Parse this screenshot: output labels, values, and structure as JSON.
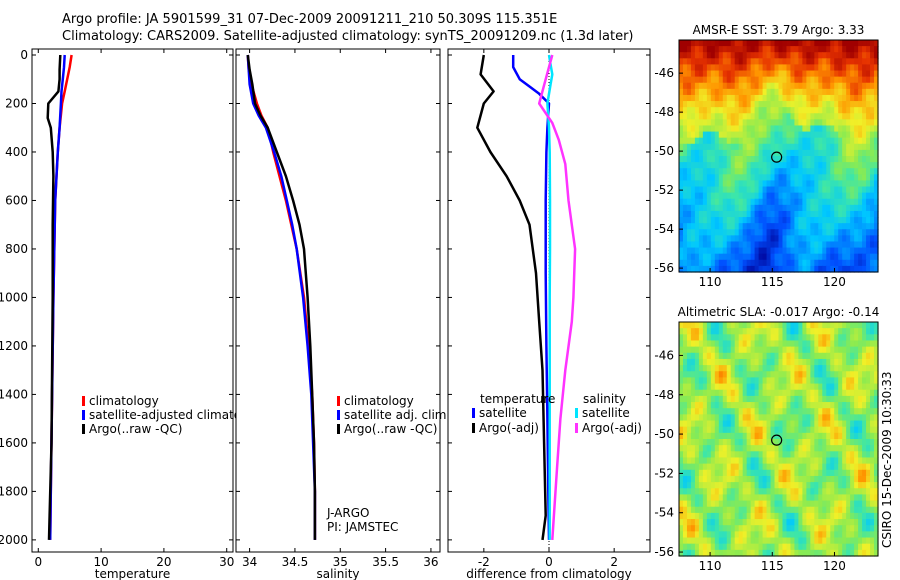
{
  "header": {
    "line1": "Argo profile: JA 5901599_31 07-Dec-2009 20091211_210 50.309S 115.351E",
    "line2": "Climatology: CARS2009. Satellite-adjusted climatology: synTS_20091209.nc (1.3d later)"
  },
  "stamp": "CSIRO 15-Dec-2009 10:30:33",
  "colors": {
    "climatology": "#ff0000",
    "satellite": "#0000ff",
    "argo": "#000000",
    "satellite_salinity": "#00e5ff",
    "argo_salinity": "#ff33ff"
  },
  "chart_data": [
    {
      "type": "line",
      "id": "temperature",
      "xlabel": "temperature",
      "ylabel": "",
      "xlim": [
        -1,
        31
      ],
      "ylim": [
        2050,
        0
      ],
      "xticks": [
        0,
        10,
        20,
        30
      ],
      "yticks": [
        0,
        200,
        400,
        600,
        800,
        1000,
        1200,
        1400,
        1600,
        1800,
        2000
      ],
      "legend": [
        "climatology",
        "satellite-adjusted climatolog",
        "Argo(..raw -QC)"
      ],
      "series": [
        {
          "name": "climatology",
          "color": "#ff0000",
          "x": [
            5.3,
            5.0,
            4.6,
            4.2,
            3.8,
            3.4,
            3.1,
            2.9,
            2.7,
            2.55,
            2.4,
            2.2,
            2.0,
            1.9
          ],
          "y": [
            0,
            50,
            100,
            150,
            200,
            300,
            400,
            500,
            600,
            800,
            1000,
            1400,
            1800,
            2000
          ]
        },
        {
          "name": "satellite-adjusted climatology",
          "color": "#0000ff",
          "x": [
            4.2,
            4.1,
            3.9,
            3.7,
            3.6,
            3.4,
            3.1,
            2.9,
            2.7,
            2.55,
            2.4,
            2.2,
            2.0,
            1.9
          ],
          "y": [
            0,
            50,
            100,
            150,
            200,
            300,
            400,
            500,
            600,
            800,
            1000,
            1400,
            1800,
            2000
          ]
        },
        {
          "name": "Argo(..raw -QC)",
          "color": "#000000",
          "x": [
            3.5,
            3.4,
            3.4,
            3.2,
            1.6,
            1.5,
            2.0,
            2.3,
            2.4,
            2.3,
            2.3,
            2.2,
            2.1,
            1.8,
            1.7
          ],
          "y": [
            0,
            60,
            100,
            150,
            200,
            260,
            300,
            400,
            500,
            700,
            1000,
            1300,
            1600,
            1900,
            2000
          ]
        }
      ]
    },
    {
      "type": "line",
      "id": "salinity",
      "xlabel": "salinity",
      "ylabel": "",
      "xlim": [
        33.85,
        36.1
      ],
      "ylim": [
        2050,
        0
      ],
      "xticks": [
        34,
        34.5,
        35,
        35.5,
        36
      ],
      "xticklabels": [
        "34",
        "34.5",
        "35",
        "35.5",
        "36"
      ],
      "legend": [
        "climatology",
        "satellite adj. clim.",
        "Argo(..raw -QC)"
      ],
      "annotations": [
        "J-ARGO",
        "PI: JAMSTEC"
      ],
      "series": [
        {
          "name": "climatology",
          "color": "#ff0000",
          "x": [
            33.98,
            33.99,
            34.02,
            34.08,
            34.13,
            34.2,
            34.26,
            34.33,
            34.4,
            34.46,
            34.52,
            34.6,
            34.65,
            34.69,
            34.71,
            34.72,
            34.72
          ],
          "y": [
            0,
            60,
            120,
            200,
            250,
            300,
            400,
            500,
            600,
            700,
            800,
            1000,
            1200,
            1400,
            1600,
            1800,
            2000
          ]
        },
        {
          "name": "satellite adj. clim.",
          "color": "#0000ff",
          "x": [
            33.98,
            33.99,
            34.0,
            34.04,
            34.1,
            34.18,
            34.27,
            34.35,
            34.41,
            34.47,
            34.52,
            34.59,
            34.64,
            34.68,
            34.7,
            34.72,
            34.72
          ],
          "y": [
            0,
            60,
            120,
            200,
            250,
            300,
            400,
            500,
            600,
            700,
            800,
            1000,
            1200,
            1400,
            1600,
            1800,
            2000
          ]
        },
        {
          "name": "Argo(..raw -QC)",
          "color": "#000000",
          "x": [
            33.98,
            34.0,
            34.03,
            34.06,
            34.12,
            34.2,
            34.3,
            34.4,
            34.48,
            34.55,
            34.6,
            34.64,
            34.67,
            34.69,
            34.71,
            34.72,
            34.72
          ],
          "y": [
            0,
            60,
            120,
            200,
            250,
            300,
            400,
            500,
            600,
            700,
            800,
            1000,
            1200,
            1400,
            1600,
            1800,
            2000
          ]
        }
      ]
    },
    {
      "type": "line",
      "id": "difference",
      "xlabel": "difference from climatology",
      "ylabel": "",
      "xlim": [
        -3.1,
        3.1
      ],
      "ylim": [
        2050,
        0
      ],
      "xticks": [
        -2,
        0,
        2
      ],
      "xticklabels": [
        "-2",
        "0",
        "2"
      ],
      "legend_temperature_title": "temperature",
      "legend_salinity_title": "salinity",
      "legend": [
        "satellite",
        "Argo(-adj)",
        "satellite",
        "Argo(-adj)"
      ],
      "series": [
        {
          "name": "temperature satellite",
          "color": "#0000ff",
          "x": [
            -1.1,
            -1.1,
            -0.9,
            -0.6,
            -0.3,
            0.0,
            -0.05,
            -0.08,
            -0.1,
            -0.1,
            -0.08,
            -0.05,
            -0.02,
            0.0
          ],
          "y": [
            0,
            50,
            100,
            130,
            160,
            200,
            300,
            400,
            600,
            900,
            1200,
            1500,
            1800,
            2000
          ]
        },
        {
          "name": "temperature Argo(-adj)",
          "color": "#000000",
          "x": [
            -2.0,
            -2.1,
            -1.7,
            -2.0,
            -2.2,
            -1.8,
            -1.3,
            -0.9,
            -0.6,
            -0.4,
            -0.3,
            -0.2,
            -0.15,
            -0.1,
            -0.2
          ],
          "y": [
            0,
            80,
            150,
            200,
            300,
            400,
            500,
            600,
            700,
            900,
            1100,
            1300,
            1600,
            1900,
            2000
          ]
        },
        {
          "name": "salinity satellite",
          "color": "#00e5ff",
          "x": [
            0.0,
            0.05,
            0.1,
            0.05,
            -0.05,
            0.0,
            0.02,
            0.03,
            0.03,
            0.02,
            0.02,
            0.02,
            0.02,
            0.02
          ],
          "y": [
            0,
            40,
            80,
            120,
            200,
            300,
            400,
            600,
            800,
            1000,
            1200,
            1500,
            1800,
            2000
          ]
        },
        {
          "name": "salinity Argo(-adj)",
          "color": "#ff33ff",
          "x": [
            0.1,
            -0.1,
            -0.3,
            0.1,
            0.3,
            0.5,
            0.6,
            0.8,
            0.75,
            0.7,
            0.5,
            0.35,
            0.25,
            0.15,
            0.1
          ],
          "y": [
            0,
            100,
            200,
            280,
            350,
            450,
            600,
            800,
            1000,
            1100,
            1300,
            1500,
            1700,
            1900,
            2000
          ]
        }
      ]
    },
    {
      "type": "heatmap",
      "id": "sst_map",
      "title": "AMSR-E SST: 3.79 Argo: 3.33",
      "xlim": [
        107.5,
        123.5
      ],
      "ylim": [
        -56.2,
        -44.3
      ],
      "xticks": [
        110,
        115,
        120
      ],
      "yticks": [
        -46,
        -48,
        -50,
        -52,
        -54,
        -56
      ],
      "argo_location": {
        "lon": 115.351,
        "lat": -50.309
      }
    },
    {
      "type": "heatmap",
      "id": "sla_map",
      "title": "Altimetric SLA: -0.017 Argo: -0.14",
      "xlim": [
        107.5,
        123.5
      ],
      "ylim": [
        -56.2,
        -44.3
      ],
      "xticks": [
        110,
        115,
        120
      ],
      "yticks": [
        -46,
        -48,
        -50,
        -52,
        -54,
        -56
      ],
      "argo_location": {
        "lon": 115.351,
        "lat": -50.309
      }
    }
  ]
}
